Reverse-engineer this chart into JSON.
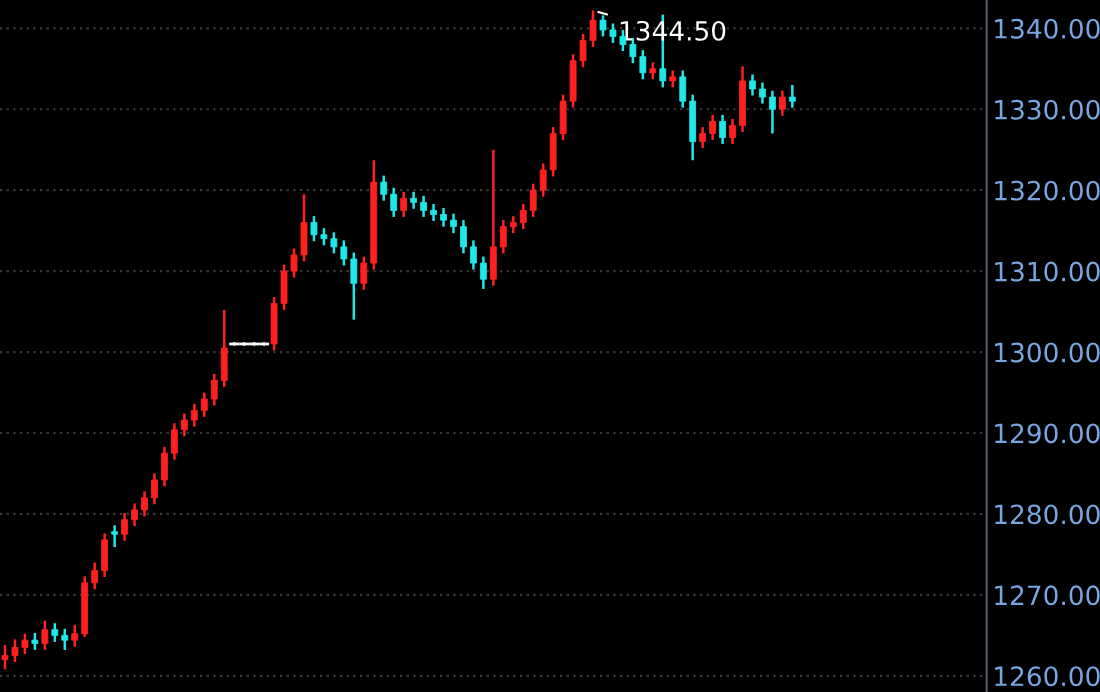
{
  "chart_data": {
    "type": "candlestick",
    "categories": [
      null,
      null,
      null,
      null,
      null,
      null,
      null,
      null,
      null,
      null,
      null,
      null,
      null,
      null,
      null,
      null,
      null,
      null,
      null,
      null,
      null,
      null,
      null,
      null,
      null,
      null,
      null,
      null,
      null,
      null,
      null,
      null,
      null,
      null,
      null,
      null,
      null,
      null,
      null,
      null,
      null,
      null,
      null,
      null,
      null,
      null,
      null,
      null,
      null,
      null,
      null,
      null,
      null,
      null,
      null,
      null,
      null,
      null,
      null,
      null,
      null,
      null,
      null,
      null,
      null,
      null,
      null,
      null,
      null,
      null,
      null,
      null,
      null,
      null,
      null,
      null,
      null,
      null,
      null,
      null,
      null,
      null,
      null,
      null,
      null,
      null,
      null,
      null,
      null,
      null,
      null,
      null,
      null,
      null,
      null,
      null,
      null,
      null,
      null
    ],
    "ohlc": [
      [
        1262,
        1263.8,
        1260.8,
        1262.5
      ],
      [
        1262.5,
        1264.5,
        1261.7,
        1263.5
      ],
      [
        1263.5,
        1265.2,
        1262.7,
        1264.4
      ],
      [
        1264.4,
        1265.3,
        1263.2,
        1264
      ],
      [
        1264,
        1266.8,
        1263.2,
        1265.7
      ],
      [
        1265.7,
        1266.5,
        1264.2,
        1265
      ],
      [
        1265,
        1265.8,
        1263.2,
        1264.4
      ],
      [
        1264.4,
        1266.3,
        1263.6,
        1265.2
      ],
      [
        1265.2,
        1272.3,
        1264.8,
        1271.5
      ],
      [
        1271.5,
        1274,
        1270.7,
        1273
      ],
      [
        1273,
        1277.6,
        1272.2,
        1276.8
      ],
      [
        1277.8,
        1278.6,
        1275.9,
        1277.5
      ],
      [
        1277.5,
        1280.1,
        1276.7,
        1279.3
      ],
      [
        1279.3,
        1281.3,
        1278.5,
        1280.5
      ],
      [
        1280.5,
        1282.8,
        1279.7,
        1282
      ],
      [
        1282,
        1285,
        1281.2,
        1284.2
      ],
      [
        1284.2,
        1288.3,
        1283.4,
        1287.5
      ],
      [
        1287.5,
        1291.2,
        1286.7,
        1290.4
      ],
      [
        1290.4,
        1292.4,
        1289.6,
        1291.6
      ],
      [
        1291.6,
        1293.6,
        1290.8,
        1292.8
      ],
      [
        1292.8,
        1295,
        1292,
        1294.2
      ],
      [
        1294.2,
        1297.3,
        1293.4,
        1296.5
      ],
      [
        1296.5,
        1305.2,
        1295.7,
        1300.5
      ],
      [
        1301,
        1301.2,
        1300.8,
        1301
      ],
      [
        1301,
        1301.2,
        1300.8,
        1301
      ],
      [
        1301,
        1301.2,
        1300.8,
        1301
      ],
      [
        1301,
        1301.2,
        1300.8,
        1301
      ],
      [
        1301,
        1306.8,
        1300.2,
        1306
      ],
      [
        1306,
        1310.8,
        1305.2,
        1310
      ],
      [
        1310,
        1312.8,
        1309.2,
        1312
      ],
      [
        1312,
        1319.5,
        1311.2,
        1316
      ],
      [
        1316,
        1316.8,
        1313.7,
        1314.5
      ],
      [
        1314.5,
        1315.3,
        1313.2,
        1314
      ],
      [
        1314,
        1314.8,
        1312.2,
        1313
      ],
      [
        1313,
        1313.8,
        1310.7,
        1311.5
      ],
      [
        1311.5,
        1312.3,
        1304,
        1308.5
      ],
      [
        1308.5,
        1311.8,
        1307.7,
        1311
      ],
      [
        1311,
        1323.7,
        1310.2,
        1321
      ],
      [
        1321,
        1321.8,
        1318.7,
        1319.5
      ],
      [
        1319.5,
        1320.3,
        1316.7,
        1317.5
      ],
      [
        1317.5,
        1319.8,
        1316.7,
        1319
      ],
      [
        1319,
        1319.8,
        1317.7,
        1318.5
      ],
      [
        1318.5,
        1319.3,
        1316.7,
        1317.5
      ],
      [
        1317.5,
        1318.3,
        1316.2,
        1317
      ],
      [
        1317,
        1317.8,
        1315.5,
        1316.3
      ],
      [
        1316.3,
        1317.1,
        1314.7,
        1315.5
      ],
      [
        1315.5,
        1316.3,
        1312.2,
        1313
      ],
      [
        1313,
        1313.8,
        1310.2,
        1311
      ],
      [
        1311,
        1311.8,
        1307.8,
        1309
      ],
      [
        1309,
        1325,
        1308.2,
        1313
      ],
      [
        1313,
        1316.3,
        1312.2,
        1315.5
      ],
      [
        1315.5,
        1316.8,
        1314.7,
        1316
      ],
      [
        1316,
        1318.3,
        1315.2,
        1317.5
      ],
      [
        1317.5,
        1320.8,
        1316.7,
        1320
      ],
      [
        1320,
        1323.3,
        1319.2,
        1322.5
      ],
      [
        1322.5,
        1327.8,
        1321.7,
        1327
      ],
      [
        1327,
        1331.8,
        1326.2,
        1331
      ],
      [
        1331,
        1336.8,
        1330.2,
        1336
      ],
      [
        1336,
        1339.3,
        1335.2,
        1338.5
      ],
      [
        1338.5,
        1342.2,
        1337.7,
        1341
      ],
      [
        1341,
        1341.6,
        1339,
        1339.8
      ],
      [
        1339.8,
        1340.6,
        1338.2,
        1339
      ],
      [
        1339,
        1339.8,
        1337.2,
        1338
      ],
      [
        1338,
        1338.8,
        1335.7,
        1336.5
      ],
      [
        1336.5,
        1337.3,
        1333.7,
        1334.5
      ],
      [
        1334.5,
        1335.8,
        1333.7,
        1335
      ],
      [
        1335,
        1341.7,
        1332.7,
        1333.5
      ],
      [
        1333.5,
        1334.8,
        1332.7,
        1334
      ],
      [
        1334,
        1334.8,
        1330.2,
        1331
      ],
      [
        1331,
        1331.8,
        1323.7,
        1326
      ],
      [
        1326,
        1327.8,
        1325.2,
        1327
      ],
      [
        1327,
        1329.3,
        1326.2,
        1328.5
      ],
      [
        1328.5,
        1329.3,
        1325.7,
        1326.5
      ],
      [
        1326.5,
        1328.8,
        1325.7,
        1328
      ],
      [
        1328,
        1335.3,
        1327.2,
        1333.5
      ],
      [
        1333.5,
        1334.3,
        1331.7,
        1332.5
      ],
      [
        1332.5,
        1333.3,
        1330.7,
        1331.5
      ],
      [
        1331.5,
        1332.3,
        1327,
        1330
      ],
      [
        1330,
        1332.3,
        1329.2,
        1331.5
      ],
      [
        1331.5,
        1333,
        1330.2,
        1331
      ],
      null,
      null,
      null,
      null,
      null,
      null,
      null,
      null,
      null,
      null,
      null,
      null,
      null,
      null,
      null,
      null,
      null,
      null,
      null
    ],
    "colors": [
      "#ff2020",
      "#ff2020",
      "#ff2020",
      "#20e8e8",
      "#ff2020",
      "#20e8e8",
      "#20e8e8",
      "#ff2020",
      "#ff2020",
      "#ff2020",
      "#ff2020",
      "#20e8e8",
      "#ff2020",
      "#ff2020",
      "#ff2020",
      "#ff2020",
      "#ff2020",
      "#ff2020",
      "#ff2020",
      "#ff2020",
      "#ff2020",
      "#ff2020",
      "#ff2020",
      "#ffffff",
      "#ffffff",
      "#ffffff",
      "#ffffff",
      "#ff2020",
      "#ff2020",
      "#ff2020",
      "#ff2020",
      "#20e8e8",
      "#20e8e8",
      "#20e8e8",
      "#20e8e8",
      "#20e8e8",
      "#ff2020",
      "#ff2020",
      "#20e8e8",
      "#20e8e8",
      "#ff2020",
      "#20e8e8",
      "#20e8e8",
      "#20e8e8",
      "#20e8e8",
      "#20e8e8",
      "#20e8e8",
      "#20e8e8",
      "#20e8e8",
      "#ff2020",
      "#ff2020",
      "#ff2020",
      "#ff2020",
      "#ff2020",
      "#ff2020",
      "#ff2020",
      "#ff2020",
      "#ff2020",
      "#ff2020",
      "#ff2020",
      "#20e8e8",
      "#20e8e8",
      "#20e8e8",
      "#20e8e8",
      "#20e8e8",
      "#ff2020",
      "#20e8e8",
      "#ff2020",
      "#20e8e8",
      "#20e8e8",
      "#ff2020",
      "#ff2020",
      "#20e8e8",
      "#ff2020",
      "#ff2020",
      "#20e8e8",
      "#20e8e8",
      "#20e8e8",
      "#ff2020",
      "#20e8e8",
      null,
      null,
      null,
      null,
      null,
      null,
      null,
      null,
      null,
      null,
      null,
      null,
      null,
      null,
      null,
      null,
      null,
      null,
      null
    ],
    "ylim": [
      1258,
      1343.5
    ],
    "yticks": [
      {
        "value": 1260,
        "label": "1260.00"
      },
      {
        "value": 1270,
        "label": "1270.00"
      },
      {
        "value": 1280,
        "label": "1280.00"
      },
      {
        "value": 1290,
        "label": "1290.00"
      },
      {
        "value": 1300,
        "label": "1300.00"
      },
      {
        "value": 1310,
        "label": "1310.00"
      },
      {
        "value": 1320,
        "label": "1320.00"
      },
      {
        "value": 1330,
        "label": "1330.00"
      },
      {
        "value": 1340,
        "label": "1340.00"
      }
    ],
    "grid": "y",
    "annotations": [
      "1344.50"
    ]
  }
}
